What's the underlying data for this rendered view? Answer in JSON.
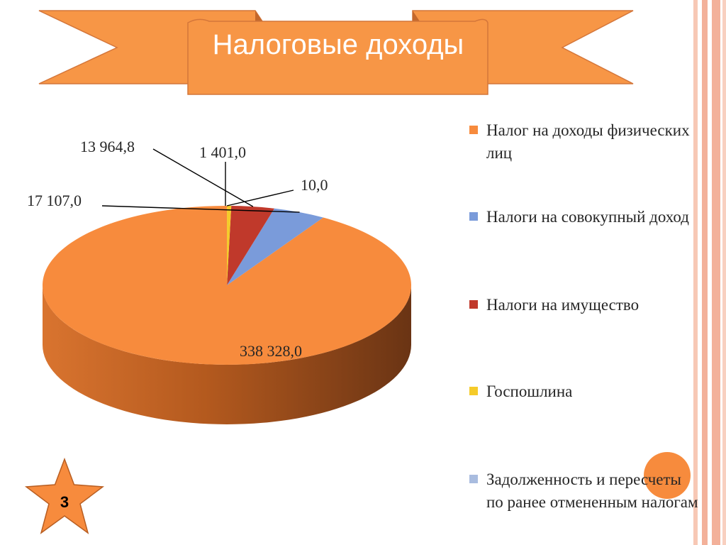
{
  "slide": {
    "title": "Налоговые доходы",
    "slide_number": "3",
    "colors": {
      "accent": "#F79646",
      "accent_border": "#D4763A",
      "stripe": "#F3B19A"
    }
  },
  "chart_data": {
    "type": "pie",
    "title": "",
    "three_d": true,
    "legend_position": "right",
    "series": [
      {
        "name": "Налог на доходы физических лиц",
        "value": 338328.0,
        "label": "338 328,0",
        "color": "#F78B3D"
      },
      {
        "name": "Налоги на совокупный доход",
        "value": 17107.0,
        "label": "17 107,0",
        "color": "#7A9BDA"
      },
      {
        "name": "Налоги на имущество",
        "value": 13964.8,
        "label": "13 964,8",
        "color": "#C0392B"
      },
      {
        "name": "Госпошлина",
        "value": 1401.0,
        "label": "1 401,0",
        "color": "#F5CB2A"
      },
      {
        "name": "Задолженность и пересчеты по ранее отмененным налогам",
        "value": 10.0,
        "label": "10,0",
        "color": "#A9BCDF"
      }
    ]
  }
}
